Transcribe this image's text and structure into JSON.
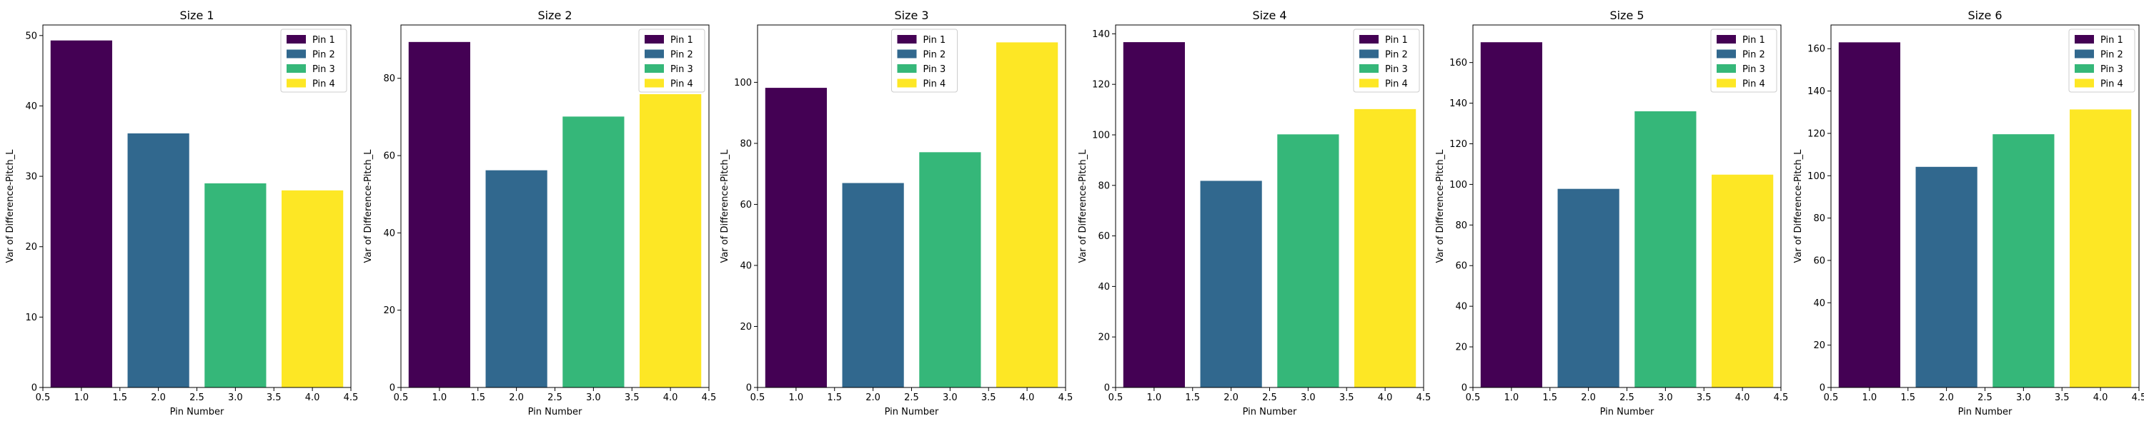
{
  "chart_data": [
    {
      "type": "bar",
      "title": "Size 1",
      "xlabel": "Pin Number",
      "ylabel": "Var of Difference-Pitch_L",
      "x": [
        1,
        2,
        3,
        4
      ],
      "values": [
        49.3,
        36.1,
        29.0,
        28.0
      ],
      "xlim": [
        0.5,
        4.5
      ],
      "ylim": [
        0,
        51.5
      ],
      "yticks": [
        0,
        10,
        20,
        30,
        40,
        50
      ],
      "legend": [
        "Pin 1",
        "Pin 2",
        "Pin 3",
        "Pin 4"
      ],
      "legend_position": "top-right",
      "grid": false
    },
    {
      "type": "bar",
      "title": "Size 2",
      "xlabel": "Pin Number",
      "ylabel": "Var of Difference-Pitch_L",
      "x": [
        1,
        2,
        3,
        4
      ],
      "values": [
        89.4,
        56.2,
        70.1,
        75.9
      ],
      "xlim": [
        0.5,
        4.5
      ],
      "ylim": [
        0,
        93.8
      ],
      "yticks": [
        0,
        20,
        40,
        60,
        80
      ],
      "legend": [
        "Pin 1",
        "Pin 2",
        "Pin 3",
        "Pin 4"
      ],
      "legend_position": "top-right",
      "grid": false
    },
    {
      "type": "bar",
      "title": "Size 3",
      "xlabel": "Pin Number",
      "ylabel": "Var of Difference-Pitch_L",
      "x": [
        1,
        2,
        3,
        4
      ],
      "values": [
        98.2,
        67.0,
        77.1,
        113.1
      ],
      "xlim": [
        0.5,
        4.5
      ],
      "ylim": [
        0,
        118.8
      ],
      "yticks": [
        0,
        20,
        40,
        60,
        80,
        100
      ],
      "legend": [
        "Pin 1",
        "Pin 2",
        "Pin 3",
        "Pin 4"
      ],
      "legend_position": "top-center",
      "grid": false
    },
    {
      "type": "bar",
      "title": "Size 4",
      "xlabel": "Pin Number",
      "ylabel": "Var of Difference-Pitch_L",
      "x": [
        1,
        2,
        3,
        4
      ],
      "values": [
        136.7,
        81.8,
        100.2,
        110.2
      ],
      "xlim": [
        0.5,
        4.5
      ],
      "ylim": [
        0,
        143.5
      ],
      "yticks": [
        0,
        20,
        40,
        60,
        80,
        100,
        120,
        140
      ],
      "legend": [
        "Pin 1",
        "Pin 2",
        "Pin 3",
        "Pin 4"
      ],
      "legend_position": "top-right",
      "grid": false
    },
    {
      "type": "bar",
      "title": "Size 5",
      "xlabel": "Pin Number",
      "ylabel": "Var of Difference-Pitch_L",
      "x": [
        1,
        2,
        3,
        4
      ],
      "values": [
        170.0,
        97.8,
        136.0,
        104.8
      ],
      "xlim": [
        0.5,
        4.5
      ],
      "ylim": [
        0,
        178.5
      ],
      "yticks": [
        0,
        20,
        40,
        60,
        80,
        100,
        120,
        140,
        160
      ],
      "legend": [
        "Pin 1",
        "Pin 2",
        "Pin 3",
        "Pin 4"
      ],
      "legend_position": "top-right",
      "grid": false
    },
    {
      "type": "bar",
      "title": "Size 6",
      "xlabel": "Pin Number",
      "ylabel": "Var of Difference-Pitch_L",
      "x": [
        1,
        2,
        3,
        4
      ],
      "values": [
        163.0,
        104.2,
        119.6,
        131.3
      ],
      "xlim": [
        0.5,
        4.5
      ],
      "ylim": [
        0,
        171.2
      ],
      "yticks": [
        0,
        20,
        40,
        60,
        80,
        100,
        120,
        140,
        160
      ],
      "legend": [
        "Pin 1",
        "Pin 2",
        "Pin 3",
        "Pin 4"
      ],
      "legend_position": "top-right",
      "grid": false
    }
  ],
  "xticks": [
    0.5,
    1.0,
    1.5,
    2.0,
    2.5,
    3.0,
    3.5,
    4.0,
    4.5
  ],
  "xtick_labels": [
    "0.5",
    "1.0",
    "1.5",
    "2.0",
    "2.5",
    "3.0",
    "3.5",
    "4.0",
    "4.5"
  ],
  "bar_colors": [
    "#440154",
    "#31688e",
    "#35b779",
    "#fde725"
  ]
}
